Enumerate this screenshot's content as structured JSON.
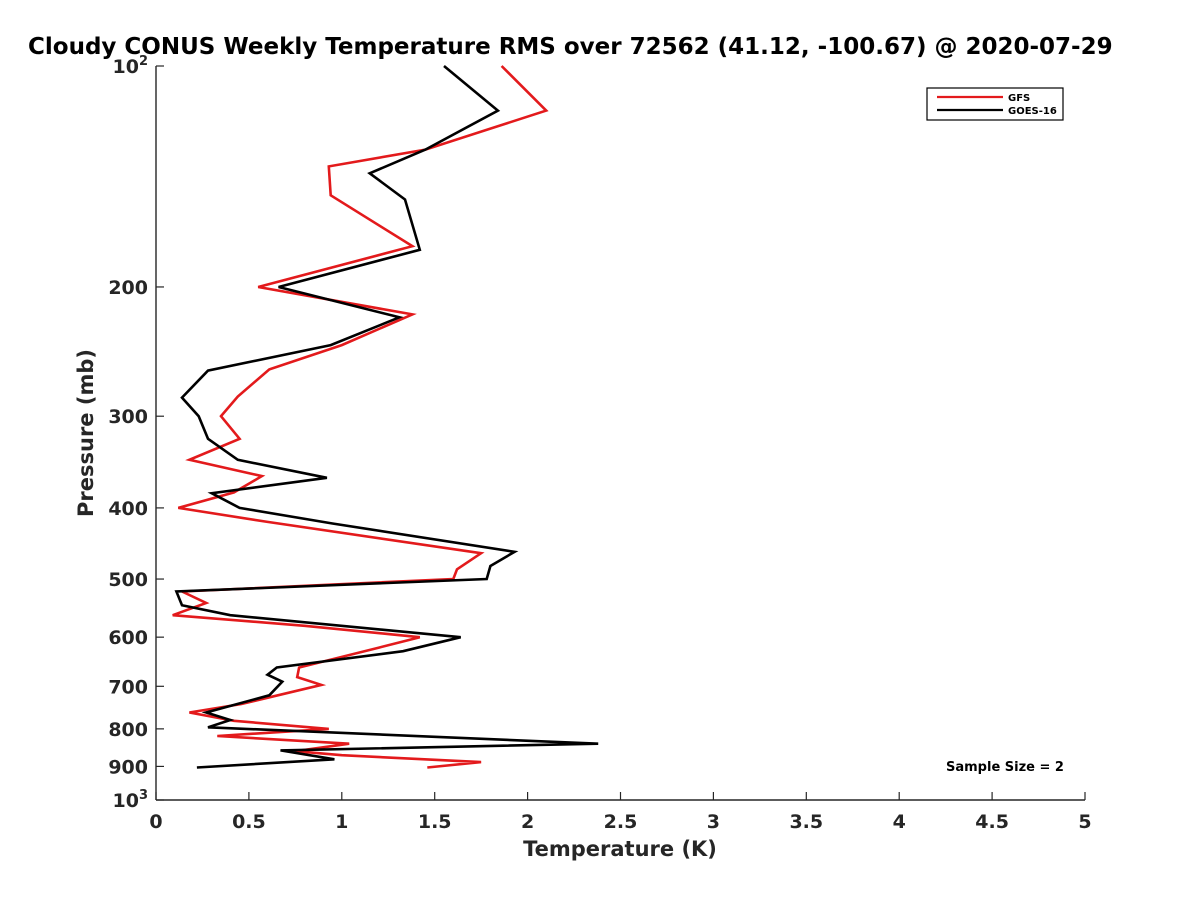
{
  "chart_data": {
    "type": "line",
    "title": "Cloudy CONUS Weekly Temperature RMS over 72562 (41.12, -100.67) @ 2020-07-29",
    "xlabel": "Temperature (K)",
    "ylabel": "Pressure (mb)",
    "xlim": [
      0,
      5
    ],
    "ylim": [
      100,
      1000
    ],
    "y_scale": "log",
    "y_reversed": true,
    "x_ticks": [
      "0",
      "0.5",
      "1",
      "1.5",
      "2",
      "2.5",
      "3",
      "3.5",
      "4",
      "4.5",
      "5"
    ],
    "y_ticks": [
      {
        "value": 100,
        "base": "10",
        "exp": "2"
      },
      {
        "value": 200,
        "label": "200"
      },
      {
        "value": 300,
        "label": "300"
      },
      {
        "value": 400,
        "label": "400"
      },
      {
        "value": 500,
        "label": "500"
      },
      {
        "value": 600,
        "label": "600"
      },
      {
        "value": 700,
        "label": "700"
      },
      {
        "value": 800,
        "label": "800"
      },
      {
        "value": 900,
        "label": "900"
      },
      {
        "value": 1000,
        "base": "10",
        "exp": "3"
      }
    ],
    "grid": false,
    "legend_position": "top-right",
    "annotation": "Sample Size = 2",
    "series": [
      {
        "name": "GFS",
        "color": "#e31a1c",
        "points": [
          [
            1.86,
            100
          ],
          [
            2.1,
            115
          ],
          [
            1.45,
            130
          ],
          [
            0.93,
            137
          ],
          [
            0.94,
            150
          ],
          [
            1.38,
            176
          ],
          [
            0.55,
            200
          ],
          [
            1.38,
            218
          ],
          [
            1.0,
            240
          ],
          [
            0.61,
            259
          ],
          [
            0.44,
            282
          ],
          [
            0.35,
            300
          ],
          [
            0.45,
            322
          ],
          [
            0.18,
            344
          ],
          [
            0.57,
            362
          ],
          [
            0.42,
            381
          ],
          [
            0.12,
            400
          ],
          [
            0.6,
            418
          ],
          [
            1.75,
            461
          ],
          [
            1.62,
            485
          ],
          [
            1.6,
            500
          ],
          [
            0.14,
            520
          ],
          [
            0.27,
            539
          ],
          [
            0.09,
            560
          ],
          [
            0.8,
            579
          ],
          [
            1.42,
            600
          ],
          [
            1.2,
            620
          ],
          [
            0.77,
            660
          ],
          [
            0.76,
            680
          ],
          [
            0.89,
            697
          ],
          [
            0.46,
            740
          ],
          [
            0.18,
            760
          ],
          [
            0.42,
            780
          ],
          [
            0.93,
            800
          ],
          [
            0.33,
            818
          ],
          [
            1.04,
            838
          ],
          [
            0.75,
            858
          ],
          [
            1.0,
            869
          ],
          [
            1.75,
            888
          ],
          [
            1.46,
            903
          ]
        ]
      },
      {
        "name": "GOES-16",
        "color": "#000000",
        "points": [
          [
            1.55,
            100
          ],
          [
            1.84,
            115
          ],
          [
            1.45,
            130
          ],
          [
            1.15,
            140
          ],
          [
            1.34,
            152
          ],
          [
            1.42,
            178
          ],
          [
            0.66,
            200
          ],
          [
            1.31,
            220
          ],
          [
            0.94,
            240
          ],
          [
            0.28,
            260
          ],
          [
            0.14,
            283
          ],
          [
            0.23,
            300
          ],
          [
            0.28,
            322
          ],
          [
            0.44,
            344
          ],
          [
            0.92,
            364
          ],
          [
            0.3,
            382
          ],
          [
            0.45,
            400
          ],
          [
            0.95,
            420
          ],
          [
            1.93,
            459
          ],
          [
            1.8,
            480
          ],
          [
            1.78,
            500
          ],
          [
            0.11,
            520
          ],
          [
            0.14,
            543
          ],
          [
            0.4,
            560
          ],
          [
            1.64,
            600
          ],
          [
            1.33,
            627
          ],
          [
            0.65,
            660
          ],
          [
            0.6,
            675
          ],
          [
            0.68,
            690
          ],
          [
            0.61,
            720
          ],
          [
            0.27,
            760
          ],
          [
            0.4,
            778
          ],
          [
            0.28,
            796
          ],
          [
            2.38,
            838
          ],
          [
            0.67,
            856
          ],
          [
            0.96,
            880
          ],
          [
            0.22,
            903
          ]
        ]
      }
    ]
  }
}
